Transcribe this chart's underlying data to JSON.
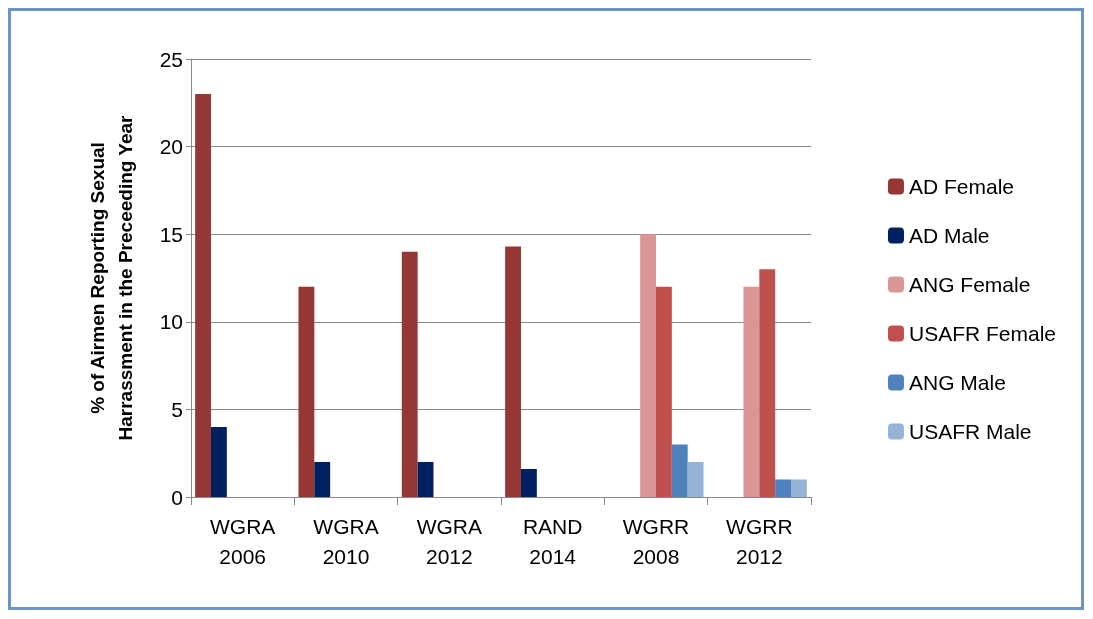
{
  "chart_data": {
    "type": "bar",
    "ylabel": "% of Airmen Reporting Sexual\nHarrassment in the Preceeding Year",
    "categories": [
      "WGRA\n2006",
      "WGRA\n2010",
      "WGRA\n2012",
      "RAND\n2014",
      "WGRR\n2008",
      "WGRR\n2012"
    ],
    "series": [
      {
        "name": "AD Female",
        "color": "#953735",
        "values": [
          23,
          12,
          14,
          14.3,
          null,
          null
        ]
      },
      {
        "name": "AD Male",
        "color": "#002060",
        "values": [
          4,
          2,
          2,
          1.6,
          null,
          null
        ]
      },
      {
        "name": "ANG Female",
        "color": "#d99694",
        "values": [
          null,
          null,
          null,
          null,
          15,
          12
        ]
      },
      {
        "name": "USAFR Female",
        "color": "#c0504d",
        "values": [
          null,
          null,
          null,
          null,
          12,
          13
        ]
      },
      {
        "name": "ANG Male",
        "color": "#4f81bd",
        "values": [
          null,
          null,
          null,
          null,
          3,
          1
        ]
      },
      {
        "name": "USAFR Male",
        "color": "#95b3d7",
        "values": [
          null,
          null,
          null,
          null,
          2,
          1
        ]
      }
    ],
    "ylim": [
      0,
      25
    ],
    "yticks": [
      0,
      5,
      10,
      15,
      20,
      25
    ],
    "grid": "y",
    "legend": "right"
  }
}
